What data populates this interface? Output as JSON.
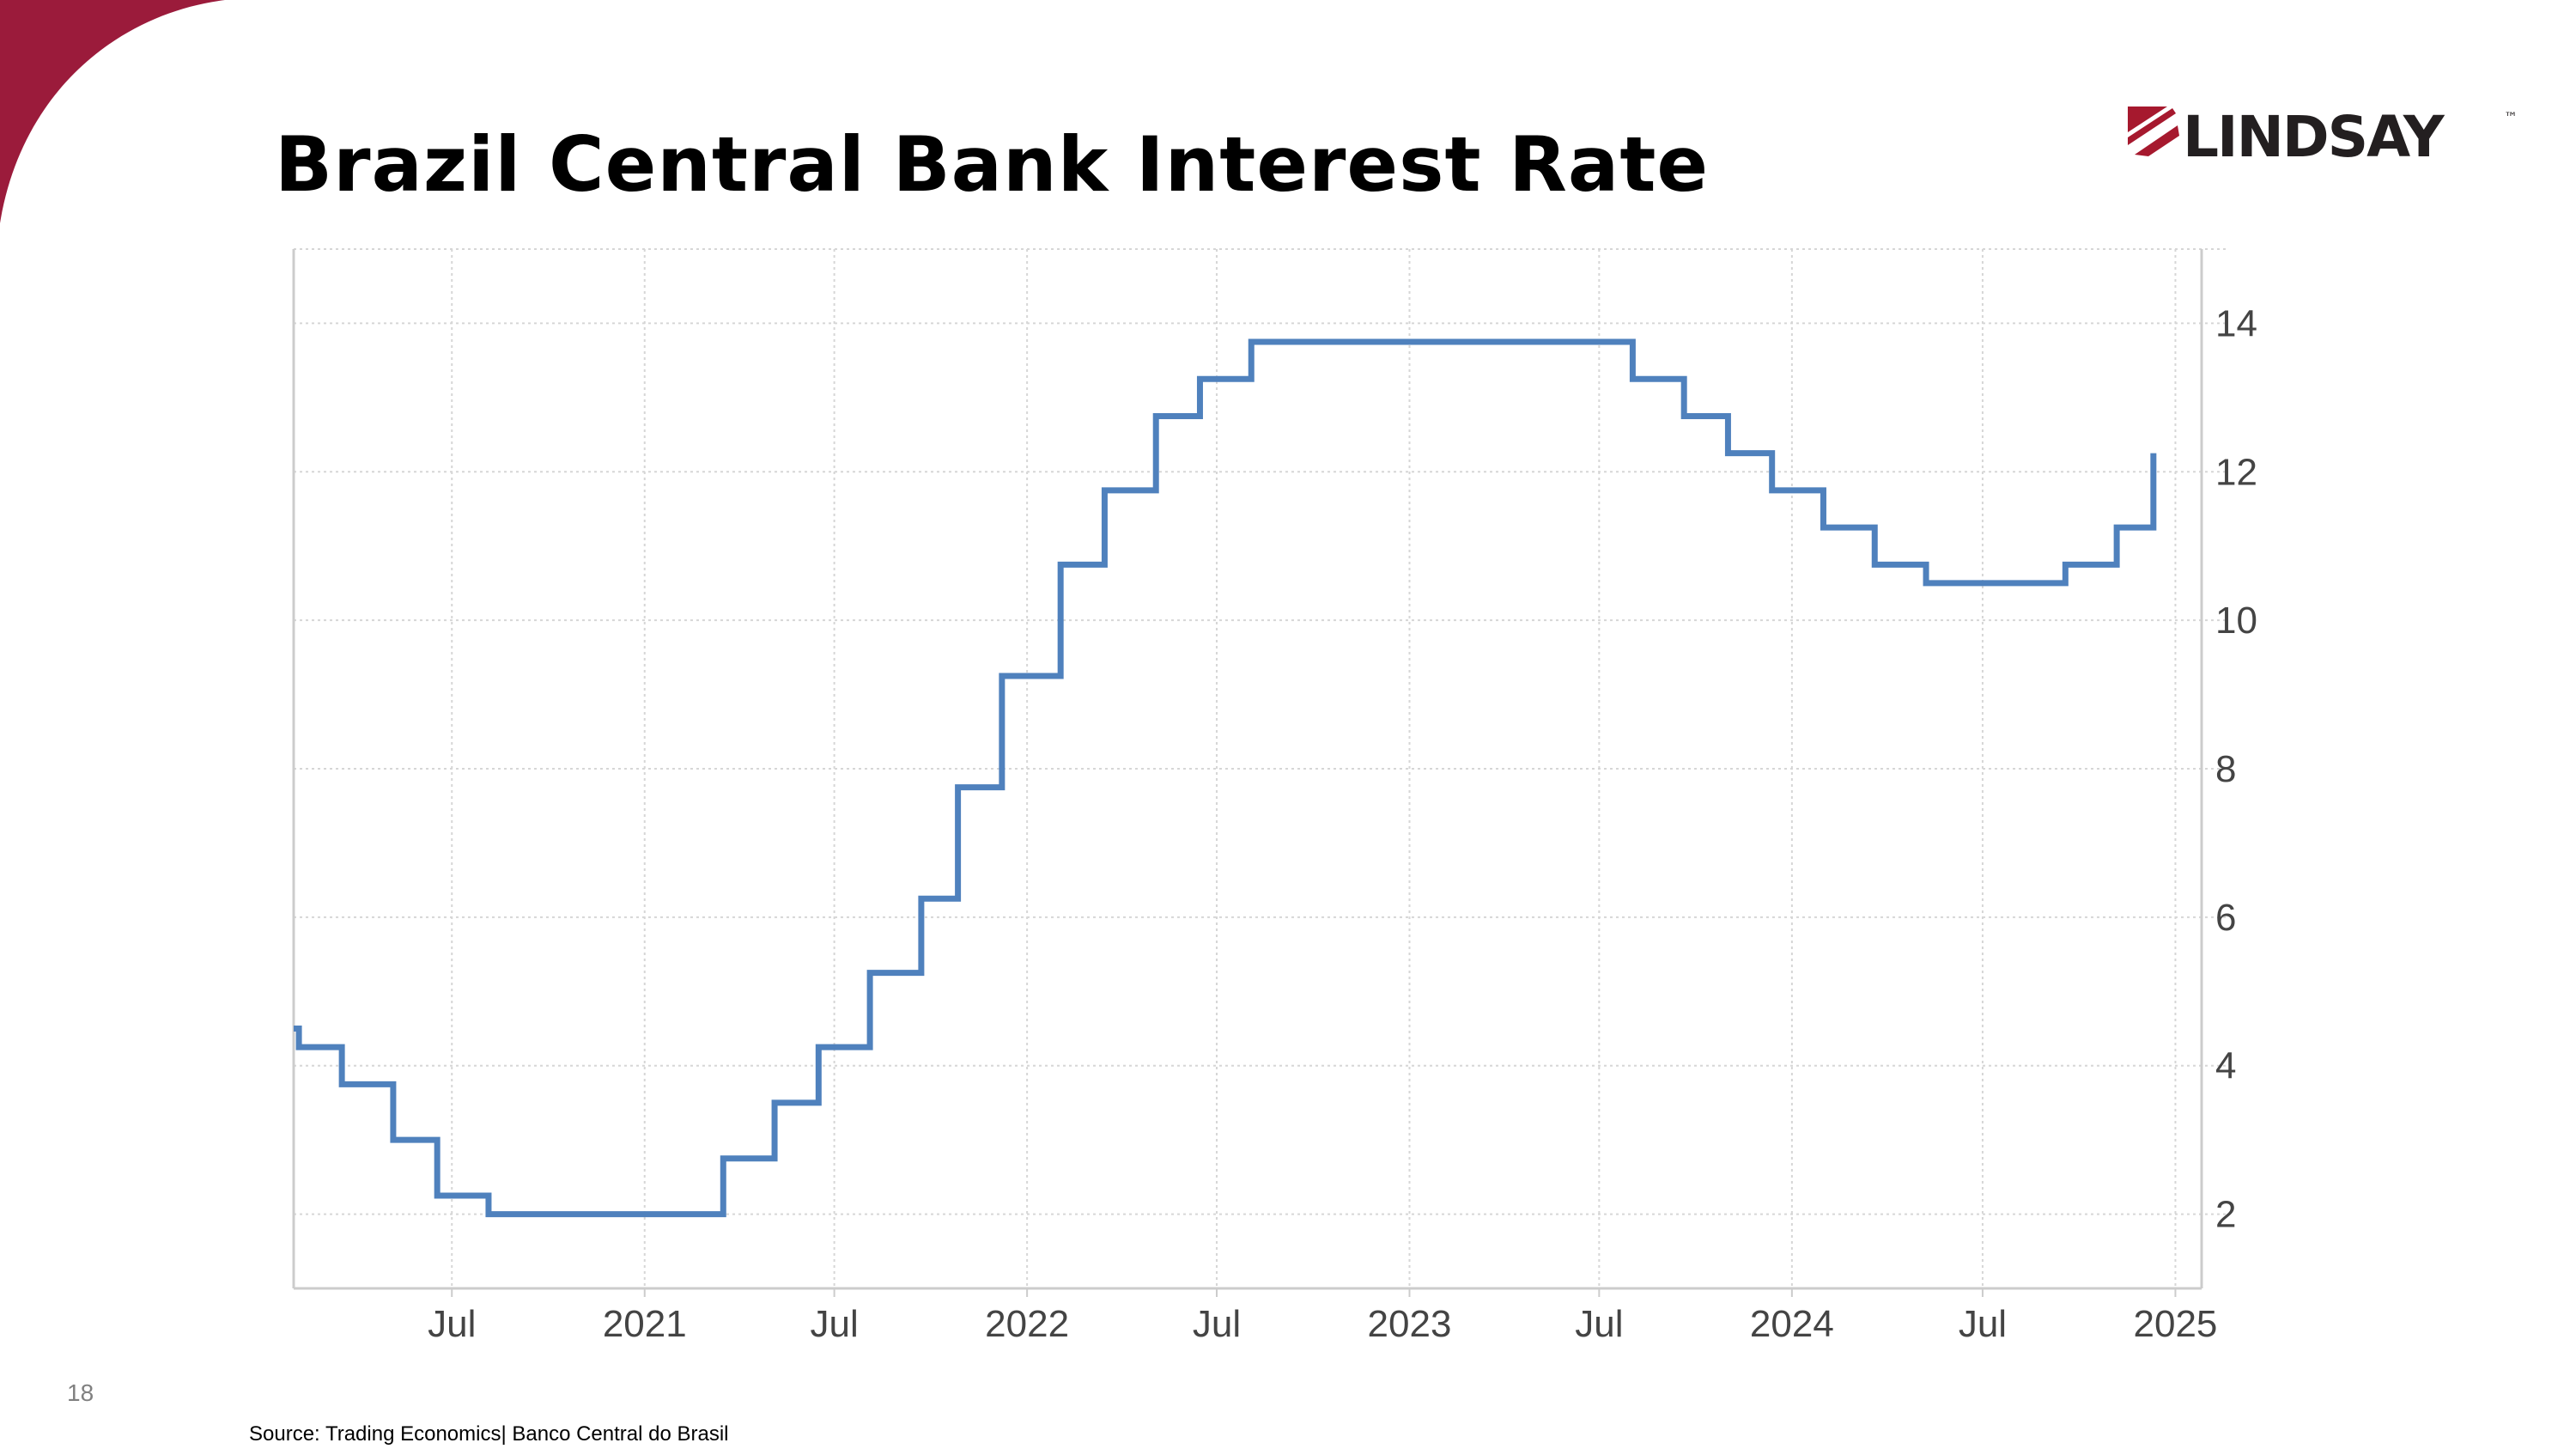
{
  "slide": {
    "title": "Brazil Central Bank Interest Rate",
    "page_number": "18",
    "source": "Source: Trading Economics| Banco Central do Brasil",
    "accent_color": "#9b1b3b"
  },
  "logo": {
    "text": "LINDSAY",
    "trademark": "™",
    "color": "#231f20",
    "accent_color": "#a6192e"
  },
  "chart_data": {
    "type": "line",
    "step": true,
    "title": "",
    "xlabel": "",
    "ylabel": "",
    "x_ticks": [
      {
        "label": "Jul",
        "date": "2020-07-01"
      },
      {
        "label": "2021",
        "date": "2021-01-01"
      },
      {
        "label": "Jul",
        "date": "2021-07-01"
      },
      {
        "label": "2022",
        "date": "2022-01-01"
      },
      {
        "label": "Jul",
        "date": "2022-07-01"
      },
      {
        "label": "2023",
        "date": "2023-01-01"
      },
      {
        "label": "Jul",
        "date": "2023-07-01"
      },
      {
        "label": "2024",
        "date": "2024-01-01"
      },
      {
        "label": "Jul",
        "date": "2024-07-01"
      },
      {
        "label": "2025",
        "date": "2025-01-01"
      }
    ],
    "y_ticks": [
      2,
      4,
      6,
      8,
      10,
      12,
      14
    ],
    "xlim": [
      "2020-02-01",
      "2025-01-08"
    ],
    "ylim": [
      1,
      15
    ],
    "y_axis_position": "right",
    "grid": true,
    "line_color": "#4f81bd",
    "series": [
      {
        "x": [
          "2020-02-01",
          "2020-02-06",
          "2020-03-18",
          "2020-05-06",
          "2020-06-17",
          "2020-08-05",
          "2021-03-17",
          "2021-05-05",
          "2021-06-16",
          "2021-08-04",
          "2021-09-22",
          "2021-10-27",
          "2021-12-08",
          "2022-02-02",
          "2022-03-16",
          "2022-05-04",
          "2022-06-15",
          "2022-08-03",
          "2023-08-02",
          "2023-09-20",
          "2023-11-01",
          "2023-12-13",
          "2024-01-31",
          "2024-03-20",
          "2024-05-08",
          "2024-09-18",
          "2024-11-06",
          "2024-12-11"
        ],
        "values": [
          4.5,
          4.25,
          3.75,
          3.0,
          2.25,
          2.0,
          2.75,
          3.5,
          4.25,
          5.25,
          6.25,
          7.75,
          9.25,
          10.75,
          11.75,
          12.75,
          13.25,
          13.75,
          13.25,
          12.75,
          12.25,
          11.75,
          11.25,
          10.75,
          10.5,
          10.75,
          11.25,
          12.25
        ]
      }
    ]
  }
}
